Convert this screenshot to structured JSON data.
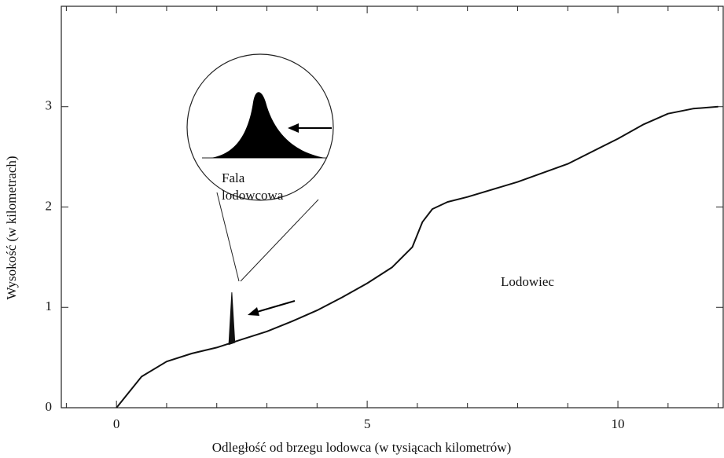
{
  "chart_data": {
    "type": "line",
    "x_label": "Odległość od brzegu lodowca (w tysiącach kilometrów)",
    "y_label": "Wysokość (w kilometrach)",
    "xlim": [
      -1.1,
      12.1
    ],
    "ylim": [
      0,
      4
    ],
    "xticks": [
      0,
      5,
      10
    ],
    "yticks": [
      0,
      1,
      2,
      3
    ],
    "xminorticks": [
      -1,
      1,
      2,
      3,
      4,
      6,
      7,
      8,
      9,
      11,
      12
    ],
    "color": "#111111",
    "x": [
      0,
      0.5,
      1,
      1.5,
      2,
      2.5,
      3,
      3.5,
      4,
      4.5,
      5,
      5.5,
      5.9,
      6.1,
      6.3,
      6.6,
      7,
      8,
      9,
      10,
      10.5,
      11,
      11.5,
      12
    ],
    "values": [
      0,
      0.31,
      0.46,
      0.54,
      0.6,
      0.68,
      0.76,
      0.86,
      0.97,
      1.1,
      1.24,
      1.4,
      1.6,
      1.85,
      1.98,
      2.05,
      2.1,
      2.25,
      2.43,
      2.68,
      2.82,
      2.93,
      2.98,
      3.0
    ],
    "surge": {
      "x": [
        2.24,
        2.3,
        2.36
      ],
      "values": [
        0.63,
        1.15,
        0.65
      ]
    },
    "annotations": {
      "glacier": "Lodowiec",
      "inset_line1": "Fala",
      "inset_line2": "lodowcowa"
    }
  }
}
